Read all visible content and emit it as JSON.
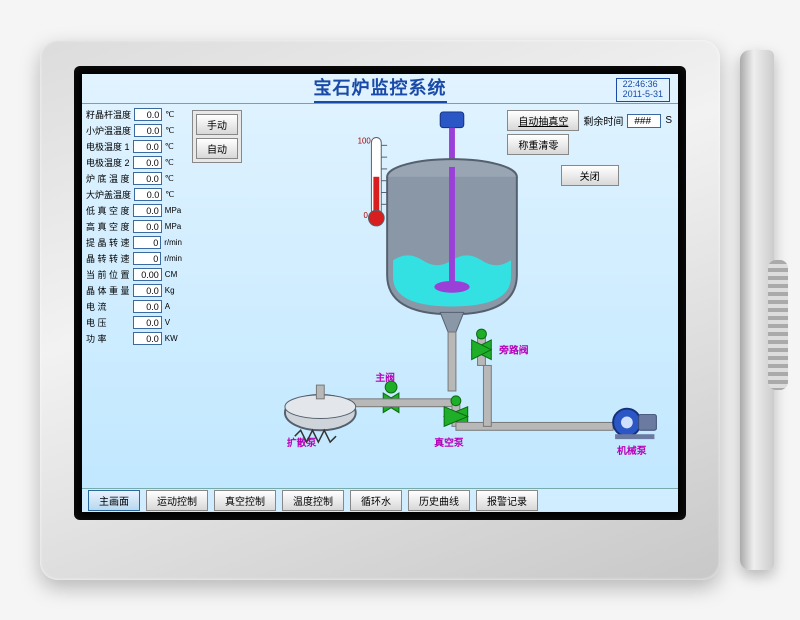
{
  "header": {
    "title": "宝石炉监控系统",
    "time": "22:46:36",
    "date": "2011-5-31"
  },
  "sidebar_params": [
    {
      "label": "籽晶杆温度",
      "value": "0.0",
      "unit": "℃"
    },
    {
      "label": "小炉温温度",
      "value": "0.0",
      "unit": "℃"
    },
    {
      "label": "电极温度 1",
      "value": "0.0",
      "unit": "℃"
    },
    {
      "label": "电极温度 2",
      "value": "0.0",
      "unit": "℃"
    },
    {
      "label": "炉 底 温 度",
      "value": "0.0",
      "unit": "℃"
    },
    {
      "label": "大炉盖温度",
      "value": "0.0",
      "unit": "℃"
    },
    {
      "label": "低 真 空 度",
      "value": "0.0",
      "unit": "MPa"
    },
    {
      "label": "高 真 空 度",
      "value": "0.0",
      "unit": "MPa"
    },
    {
      "label": "提 晶 转 速",
      "value": "0",
      "unit": "r/min"
    },
    {
      "label": "晶 转 转 速",
      "value": "0",
      "unit": "r/min"
    },
    {
      "label": "当 前 位 置",
      "value": "0.00",
      "unit": "CM"
    },
    {
      "label": "晶 体 重 量",
      "value": "0.0",
      "unit": "Kg"
    },
    {
      "label": "电      流",
      "value": "0.0",
      "unit": "A"
    },
    {
      "label": "电      压",
      "value": "0.0",
      "unit": "V"
    },
    {
      "label": "功      率",
      "value": "0.0",
      "unit": "KW"
    }
  ],
  "mode": {
    "manual": "手动",
    "auto": "自动"
  },
  "top_right": {
    "auto_vacuum_btn": "自动抽真空",
    "remaining_label": "剩余时间",
    "remaining_value": "###",
    "remaining_unit": "S",
    "weight_zero_btn": "称重清零",
    "close_btn": "关闭"
  },
  "diagram": {
    "thermo_max": "100",
    "thermo_min": "0",
    "labels": {
      "bypass_valve": "旁路阀",
      "main_valve": "主阀",
      "diffusion_pump": "扩散泵",
      "vacuum_pump": "真空泵",
      "mech_pump": "机械泵"
    },
    "colors": {
      "tank_body": "#8a97a6",
      "tank_stroke": "#55606e",
      "liquid": "#2ee5e5",
      "shaft": "#9a3fd8",
      "motor": "#2a56c6",
      "pipe": "#b8b8b8"
    }
  },
  "nav": {
    "items": [
      "主画面",
      "运动控制",
      "真空控制",
      "温度控制",
      "循环水",
      "历史曲线",
      "报警记录"
    ],
    "active_index": 0
  }
}
